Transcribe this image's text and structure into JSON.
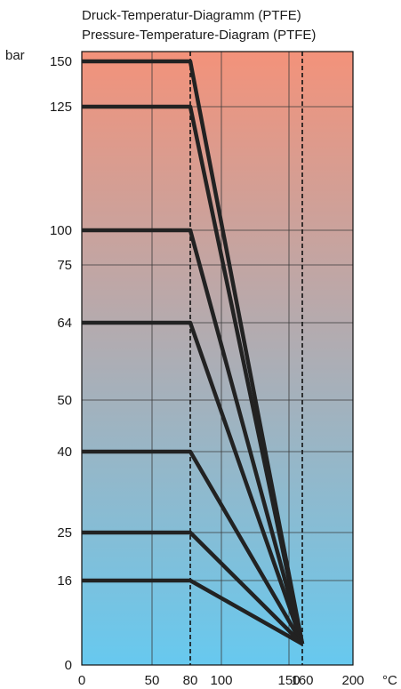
{
  "chart_data": {
    "type": "line",
    "title": "Druck-Temperatur-Diagramm (PTFE)",
    "subtitle": "Pressure-Temperature-Diagram (PTFE)",
    "xlabel": "°C",
    "ylabel": "bar",
    "xlim": [
      0,
      200
    ],
    "ylim": [
      0,
      150
    ],
    "grid": true,
    "background_gradient": {
      "top": "#f3927a",
      "bottom": "#67c9ef"
    },
    "line_color": "#222222",
    "x_ticks": [
      {
        "value": 0,
        "label": "0"
      },
      {
        "value": 50,
        "label": "50"
      },
      {
        "value": 80,
        "label": "80"
      },
      {
        "value": 100,
        "label": "100"
      },
      {
        "value": 150,
        "label": "150"
      },
      {
        "value": 160,
        "label": "160"
      },
      {
        "value": 200,
        "label": "200"
      }
    ],
    "y_ticks": [
      {
        "value": 0,
        "label": "0"
      },
      {
        "value": 16,
        "label": "16"
      },
      {
        "value": 25,
        "label": "25"
      },
      {
        "value": 40,
        "label": "40"
      },
      {
        "value": 50,
        "label": "50"
      },
      {
        "value": 64,
        "label": "64"
      },
      {
        "value": 75,
        "label": "75"
      },
      {
        "value": 100,
        "label": "100"
      },
      {
        "value": 125,
        "label": "125"
      },
      {
        "value": 150,
        "label": "150"
      }
    ],
    "reference_lines_x": [
      80,
      160
    ],
    "end_point": {
      "x": 160,
      "y": 4
    },
    "series": [
      {
        "x": [
          0,
          80,
          160
        ],
        "y": [
          150,
          150,
          4
        ]
      },
      {
        "x": [
          0,
          80,
          160
        ],
        "y": [
          125,
          125,
          4
        ]
      },
      {
        "x": [
          0,
          80,
          160
        ],
        "y": [
          100,
          100,
          4
        ]
      },
      {
        "x": [
          0,
          80,
          160
        ],
        "y": [
          64,
          64,
          4
        ]
      },
      {
        "x": [
          0,
          80,
          160
        ],
        "y": [
          40,
          40,
          4
        ]
      },
      {
        "x": [
          0,
          80,
          160
        ],
        "y": [
          25,
          25,
          4
        ]
      },
      {
        "x": [
          0,
          80,
          160
        ],
        "y": [
          16,
          16,
          4
        ]
      }
    ]
  }
}
